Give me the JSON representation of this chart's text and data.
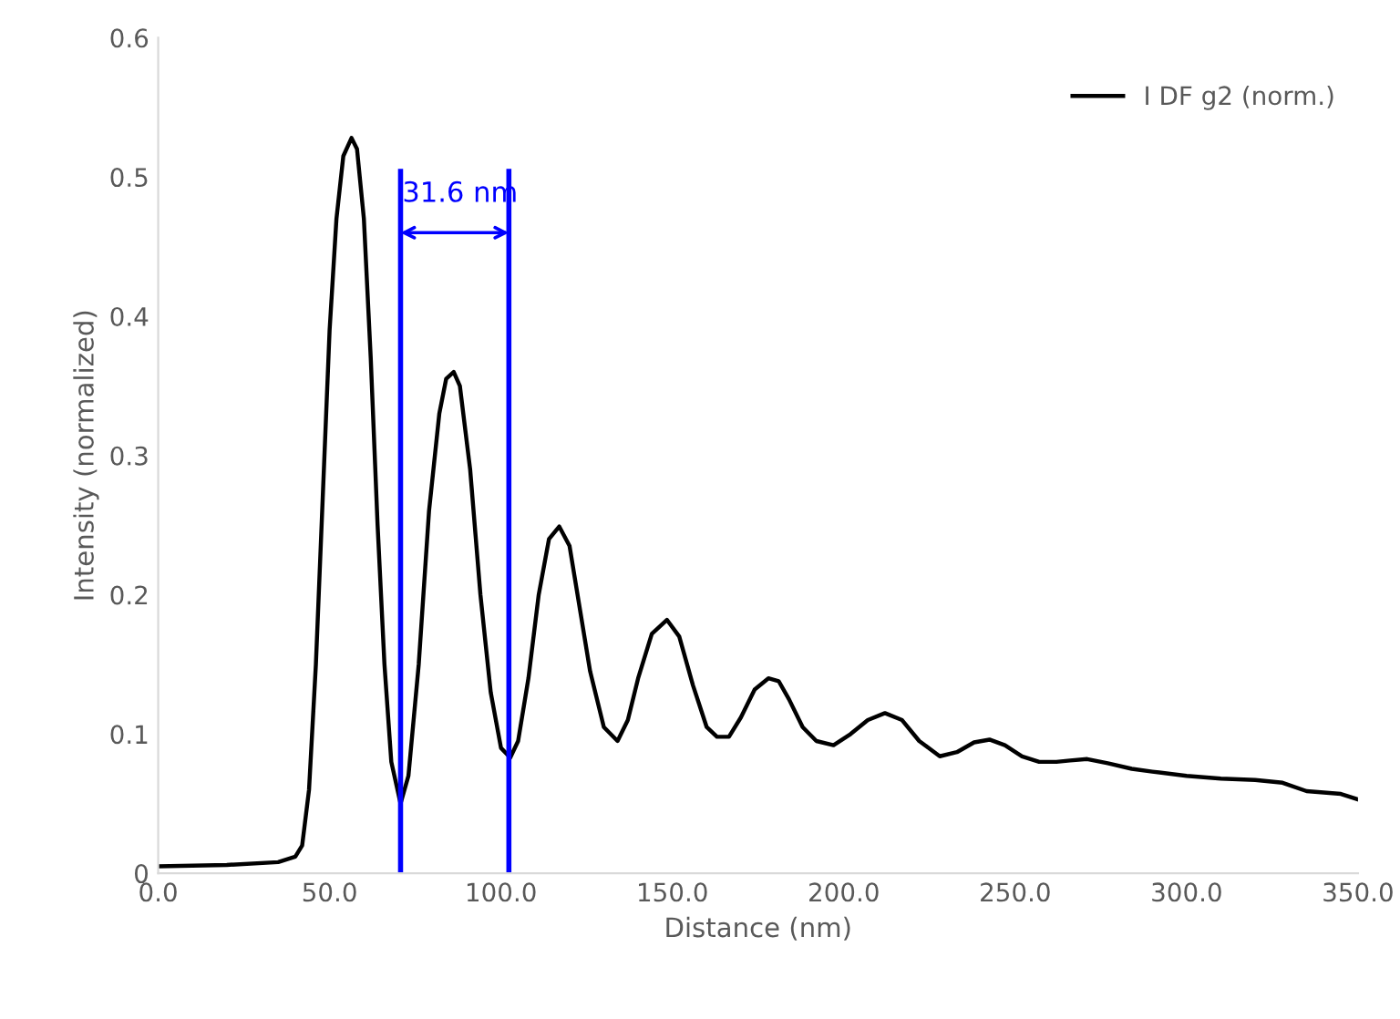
{
  "chart_data": {
    "type": "line",
    "xlabel": "Distance (nm)",
    "ylabel": "Intensity (normalized)",
    "xlim": [
      0,
      350
    ],
    "ylim": [
      0,
      0.6
    ],
    "xticks": [
      {
        "value": 0,
        "label": "0.0"
      },
      {
        "value": 50,
        "label": "50.0"
      },
      {
        "value": 100,
        "label": "100.0"
      },
      {
        "value": 150,
        "label": "150.0"
      },
      {
        "value": 200,
        "label": "200.0"
      },
      {
        "value": 250,
        "label": "250.0"
      },
      {
        "value": 300,
        "label": "300.0"
      },
      {
        "value": 350,
        "label": "350.0"
      }
    ],
    "yticks": [
      0,
      0.1,
      0.2,
      0.3,
      0.4,
      0.5,
      0.6
    ],
    "grid": false,
    "legend": "top right",
    "marker": "none",
    "line_style": "solid",
    "series": [
      {
        "name": "I DF g2 (norm.)",
        "color": "#000000",
        "x": [
          0,
          20,
          35,
          40,
          42,
          44,
          46,
          48,
          50,
          52,
          54,
          56.4,
          58,
          60,
          62,
          64,
          66,
          68,
          70.7,
          73,
          76,
          79,
          82,
          84,
          86.2,
          88,
          91,
          94,
          97,
          100,
          102.7,
          105,
          108,
          111,
          114,
          117,
          120,
          123,
          126,
          130,
          134,
          137,
          140,
          144,
          148.4,
          152,
          156,
          160,
          163,
          166.5,
          170,
          174,
          178,
          181,
          184,
          188,
          192,
          197,
          202,
          207,
          212,
          217,
          222,
          228,
          233,
          238,
          242.5,
          247,
          252,
          257,
          262,
          266,
          271,
          277,
          284,
          290,
          300,
          310,
          320,
          328,
          335,
          345,
          350
        ],
        "values": [
          0.005,
          0.006,
          0.008,
          0.012,
          0.02,
          0.06,
          0.15,
          0.27,
          0.39,
          0.47,
          0.515,
          0.528,
          0.52,
          0.47,
          0.37,
          0.25,
          0.15,
          0.08,
          0.05,
          0.07,
          0.15,
          0.26,
          0.33,
          0.355,
          0.36,
          0.35,
          0.29,
          0.2,
          0.13,
          0.09,
          0.083,
          0.095,
          0.14,
          0.2,
          0.24,
          0.249,
          0.235,
          0.19,
          0.145,
          0.105,
          0.095,
          0.11,
          0.14,
          0.172,
          0.182,
          0.17,
          0.135,
          0.105,
          0.098,
          0.098,
          0.112,
          0.132,
          0.14,
          0.138,
          0.125,
          0.105,
          0.095,
          0.092,
          0.1,
          0.11,
          0.115,
          0.11,
          0.095,
          0.084,
          0.087,
          0.094,
          0.096,
          0.092,
          0.084,
          0.08,
          0.08,
          0.081,
          0.082,
          0.079,
          0.075,
          0.073,
          0.07,
          0.068,
          0.067,
          0.065,
          0.059,
          0.057,
          0.053
        ]
      }
    ],
    "ref_lines": [
      {
        "axis": "x",
        "value": 70.7,
        "color": "#0000ff",
        "line_style": "solid"
      },
      {
        "axis": "x",
        "value": 102.3,
        "color": "#0000ff",
        "line_style": "solid"
      }
    ],
    "annotations": [
      {
        "text": "31.6 nm",
        "x": 70.7,
        "y": 0.46
      }
    ]
  }
}
